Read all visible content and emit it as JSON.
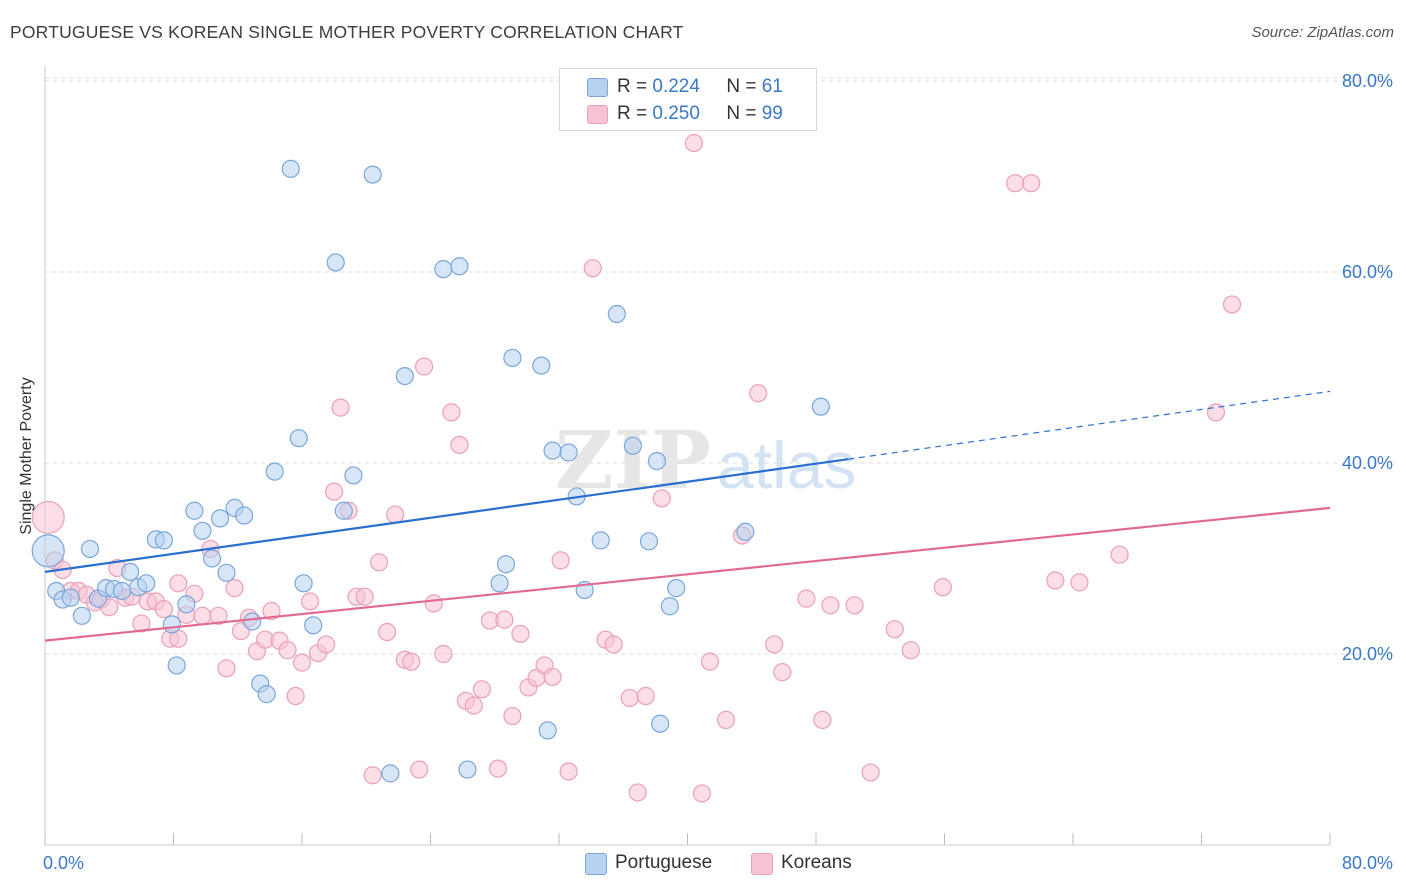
{
  "title": "PORTUGUESE VS KOREAN SINGLE MOTHER POVERTY CORRELATION CHART",
  "source": "Source: ZipAtlas.com",
  "watermark": {
    "zip": "ZIP",
    "atlas": "atlas"
  },
  "legend": {
    "rows": [
      {
        "r_label": "R =",
        "r_value": "0.224",
        "n_label": "N =",
        "n_value": "61"
      },
      {
        "r_label": "R =",
        "r_value": "0.250",
        "n_label": "N =",
        "n_value": "99"
      }
    ]
  },
  "bottom_legend": [
    "Portuguese",
    "Koreans"
  ],
  "colors": {
    "portuguese_fill": "#b7d1f0",
    "portuguese_stroke": "#7aa6dc",
    "portuguese_line": "#2a6fcf",
    "korean_fill": "#f7c2d2",
    "korean_stroke": "#e9a0b8",
    "korean_line": "#e06a94",
    "tick_label": "#3a78c9",
    "grid": "#dcdcdc"
  },
  "chart_data": {
    "type": "scatter",
    "title": "PORTUGUESE VS KOREAN SINGLE MOTHER POVERTY CORRELATION CHART",
    "xlabel": "",
    "ylabel": "Single Mother Poverty",
    "xlim": [
      0,
      80
    ],
    "ylim": [
      0,
      82
    ],
    "x_tick_labels": [
      "0.0%",
      "80.0%"
    ],
    "y_ticks": [
      20,
      40,
      60,
      80
    ],
    "y_tick_labels": [
      "20.0%",
      "40.0%",
      "60.0%",
      "80.0%"
    ],
    "grid": true,
    "legend_position": "top-center",
    "series": [
      {
        "name": "Portuguese",
        "r": 0.224,
        "n": 61,
        "trend": {
          "x": [
            0,
            50
          ],
          "y": [
            28.6,
            40.4
          ],
          "dashed_to": [
            80,
            47.5
          ]
        },
        "points": [
          [
            0.2,
            30.8
          ],
          [
            0.7,
            26.6
          ],
          [
            1.1,
            25.7
          ],
          [
            1.6,
            25.9
          ],
          [
            2.3,
            24.0
          ],
          [
            2.8,
            31.0
          ],
          [
            3.3,
            25.8
          ],
          [
            3.8,
            26.9
          ],
          [
            4.3,
            26.8
          ],
          [
            4.8,
            26.6
          ],
          [
            5.3,
            28.6
          ],
          [
            5.8,
            27.0
          ],
          [
            6.3,
            27.4
          ],
          [
            6.9,
            32.0
          ],
          [
            7.4,
            31.9
          ],
          [
            7.9,
            23.1
          ],
          [
            8.2,
            18.8
          ],
          [
            8.8,
            25.2
          ],
          [
            9.3,
            35.0
          ],
          [
            9.8,
            32.9
          ],
          [
            10.4,
            30.0
          ],
          [
            10.9,
            34.2
          ],
          [
            11.3,
            28.5
          ],
          [
            11.8,
            35.3
          ],
          [
            12.4,
            34.5
          ],
          [
            12.9,
            23.4
          ],
          [
            13.4,
            16.9
          ],
          [
            13.8,
            15.8
          ],
          [
            14.3,
            39.1
          ],
          [
            15.3,
            70.8
          ],
          [
            15.8,
            42.6
          ],
          [
            16.1,
            27.4
          ],
          [
            16.7,
            23.0
          ],
          [
            18.1,
            61.0
          ],
          [
            18.6,
            35.0
          ],
          [
            19.2,
            38.7
          ],
          [
            20.4,
            70.2
          ],
          [
            21.5,
            7.5
          ],
          [
            22.4,
            49.1
          ],
          [
            24.8,
            60.3
          ],
          [
            25.8,
            60.6
          ],
          [
            26.3,
            7.9
          ],
          [
            28.3,
            27.4
          ],
          [
            28.7,
            29.4
          ],
          [
            29.1,
            51.0
          ],
          [
            30.9,
            50.2
          ],
          [
            31.3,
            12.0
          ],
          [
            31.6,
            41.3
          ],
          [
            32.6,
            41.1
          ],
          [
            33.1,
            36.5
          ],
          [
            33.6,
            26.7
          ],
          [
            34.6,
            31.9
          ],
          [
            35.6,
            55.6
          ],
          [
            36.6,
            41.8
          ],
          [
            37.6,
            31.8
          ],
          [
            38.1,
            40.2
          ],
          [
            38.3,
            12.7
          ],
          [
            38.9,
            25.0
          ],
          [
            39.3,
            26.9
          ],
          [
            43.6,
            32.8
          ],
          [
            48.3,
            45.9
          ]
        ]
      },
      {
        "name": "Koreans",
        "r": 0.25,
        "n": 99,
        "trend": {
          "x": [
            0,
            80
          ],
          "y": [
            21.4,
            35.3
          ]
        },
        "points": [
          [
            0.2,
            34.3
          ],
          [
            0.6,
            29.8
          ],
          [
            1.1,
            28.8
          ],
          [
            1.6,
            26.6
          ],
          [
            2.1,
            26.6
          ],
          [
            2.6,
            26.2
          ],
          [
            3.1,
            25.4
          ],
          [
            3.5,
            25.7
          ],
          [
            4.0,
            24.9
          ],
          [
            4.5,
            29.0
          ],
          [
            5.0,
            25.9
          ],
          [
            5.4,
            26.0
          ],
          [
            6.0,
            23.2
          ],
          [
            6.4,
            25.5
          ],
          [
            6.9,
            25.5
          ],
          [
            7.4,
            24.7
          ],
          [
            7.8,
            21.6
          ],
          [
            8.3,
            21.6
          ],
          [
            8.3,
            27.4
          ],
          [
            8.8,
            24.1
          ],
          [
            9.3,
            26.3
          ],
          [
            9.8,
            24.0
          ],
          [
            10.3,
            31.0
          ],
          [
            10.8,
            24.0
          ],
          [
            11.3,
            18.5
          ],
          [
            11.8,
            26.9
          ],
          [
            12.2,
            22.4
          ],
          [
            12.7,
            23.8
          ],
          [
            13.2,
            20.3
          ],
          [
            13.7,
            21.5
          ],
          [
            14.1,
            24.5
          ],
          [
            14.6,
            21.4
          ],
          [
            15.1,
            20.4
          ],
          [
            15.6,
            15.6
          ],
          [
            16.0,
            19.1
          ],
          [
            16.5,
            25.5
          ],
          [
            17.0,
            20.1
          ],
          [
            17.5,
            21.0
          ],
          [
            18.0,
            37.0
          ],
          [
            18.4,
            45.8
          ],
          [
            18.9,
            35.0
          ],
          [
            19.4,
            26.0
          ],
          [
            19.9,
            26.0
          ],
          [
            20.4,
            7.3
          ],
          [
            20.8,
            29.6
          ],
          [
            21.3,
            22.3
          ],
          [
            21.8,
            34.6
          ],
          [
            22.4,
            19.4
          ],
          [
            22.8,
            19.2
          ],
          [
            23.3,
            7.9
          ],
          [
            23.6,
            50.1
          ],
          [
            24.2,
            25.3
          ],
          [
            24.8,
            20.0
          ],
          [
            25.3,
            45.3
          ],
          [
            25.8,
            41.9
          ],
          [
            26.2,
            15.1
          ],
          [
            26.7,
            14.6
          ],
          [
            27.2,
            16.3
          ],
          [
            27.7,
            23.5
          ],
          [
            28.2,
            8.0
          ],
          [
            28.6,
            23.6
          ],
          [
            29.1,
            13.5
          ],
          [
            29.6,
            22.1
          ],
          [
            30.1,
            16.5
          ],
          [
            30.6,
            17.5
          ],
          [
            31.1,
            18.8
          ],
          [
            31.6,
            17.6
          ],
          [
            32.1,
            29.8
          ],
          [
            32.6,
            7.7
          ],
          [
            34.1,
            60.4
          ],
          [
            34.9,
            21.5
          ],
          [
            35.4,
            21.0
          ],
          [
            36.4,
            15.4
          ],
          [
            36.9,
            5.5
          ],
          [
            37.4,
            15.6
          ],
          [
            38.4,
            36.3
          ],
          [
            40.4,
            73.5
          ],
          [
            40.9,
            5.4
          ],
          [
            41.4,
            19.2
          ],
          [
            42.4,
            13.1
          ],
          [
            43.4,
            32.4
          ],
          [
            44.4,
            47.3
          ],
          [
            45.4,
            21.0
          ],
          [
            45.9,
            18.1
          ],
          [
            47.4,
            25.8
          ],
          [
            48.4,
            13.1
          ],
          [
            48.9,
            25.1
          ],
          [
            50.4,
            25.1
          ],
          [
            51.4,
            7.6
          ],
          [
            52.9,
            22.6
          ],
          [
            53.9,
            20.4
          ],
          [
            55.9,
            27.0
          ],
          [
            60.4,
            69.3
          ],
          [
            61.4,
            69.3
          ],
          [
            62.9,
            27.7
          ],
          [
            64.4,
            27.5
          ],
          [
            66.9,
            30.4
          ],
          [
            72.9,
            45.3
          ],
          [
            73.9,
            56.6
          ]
        ]
      }
    ]
  }
}
